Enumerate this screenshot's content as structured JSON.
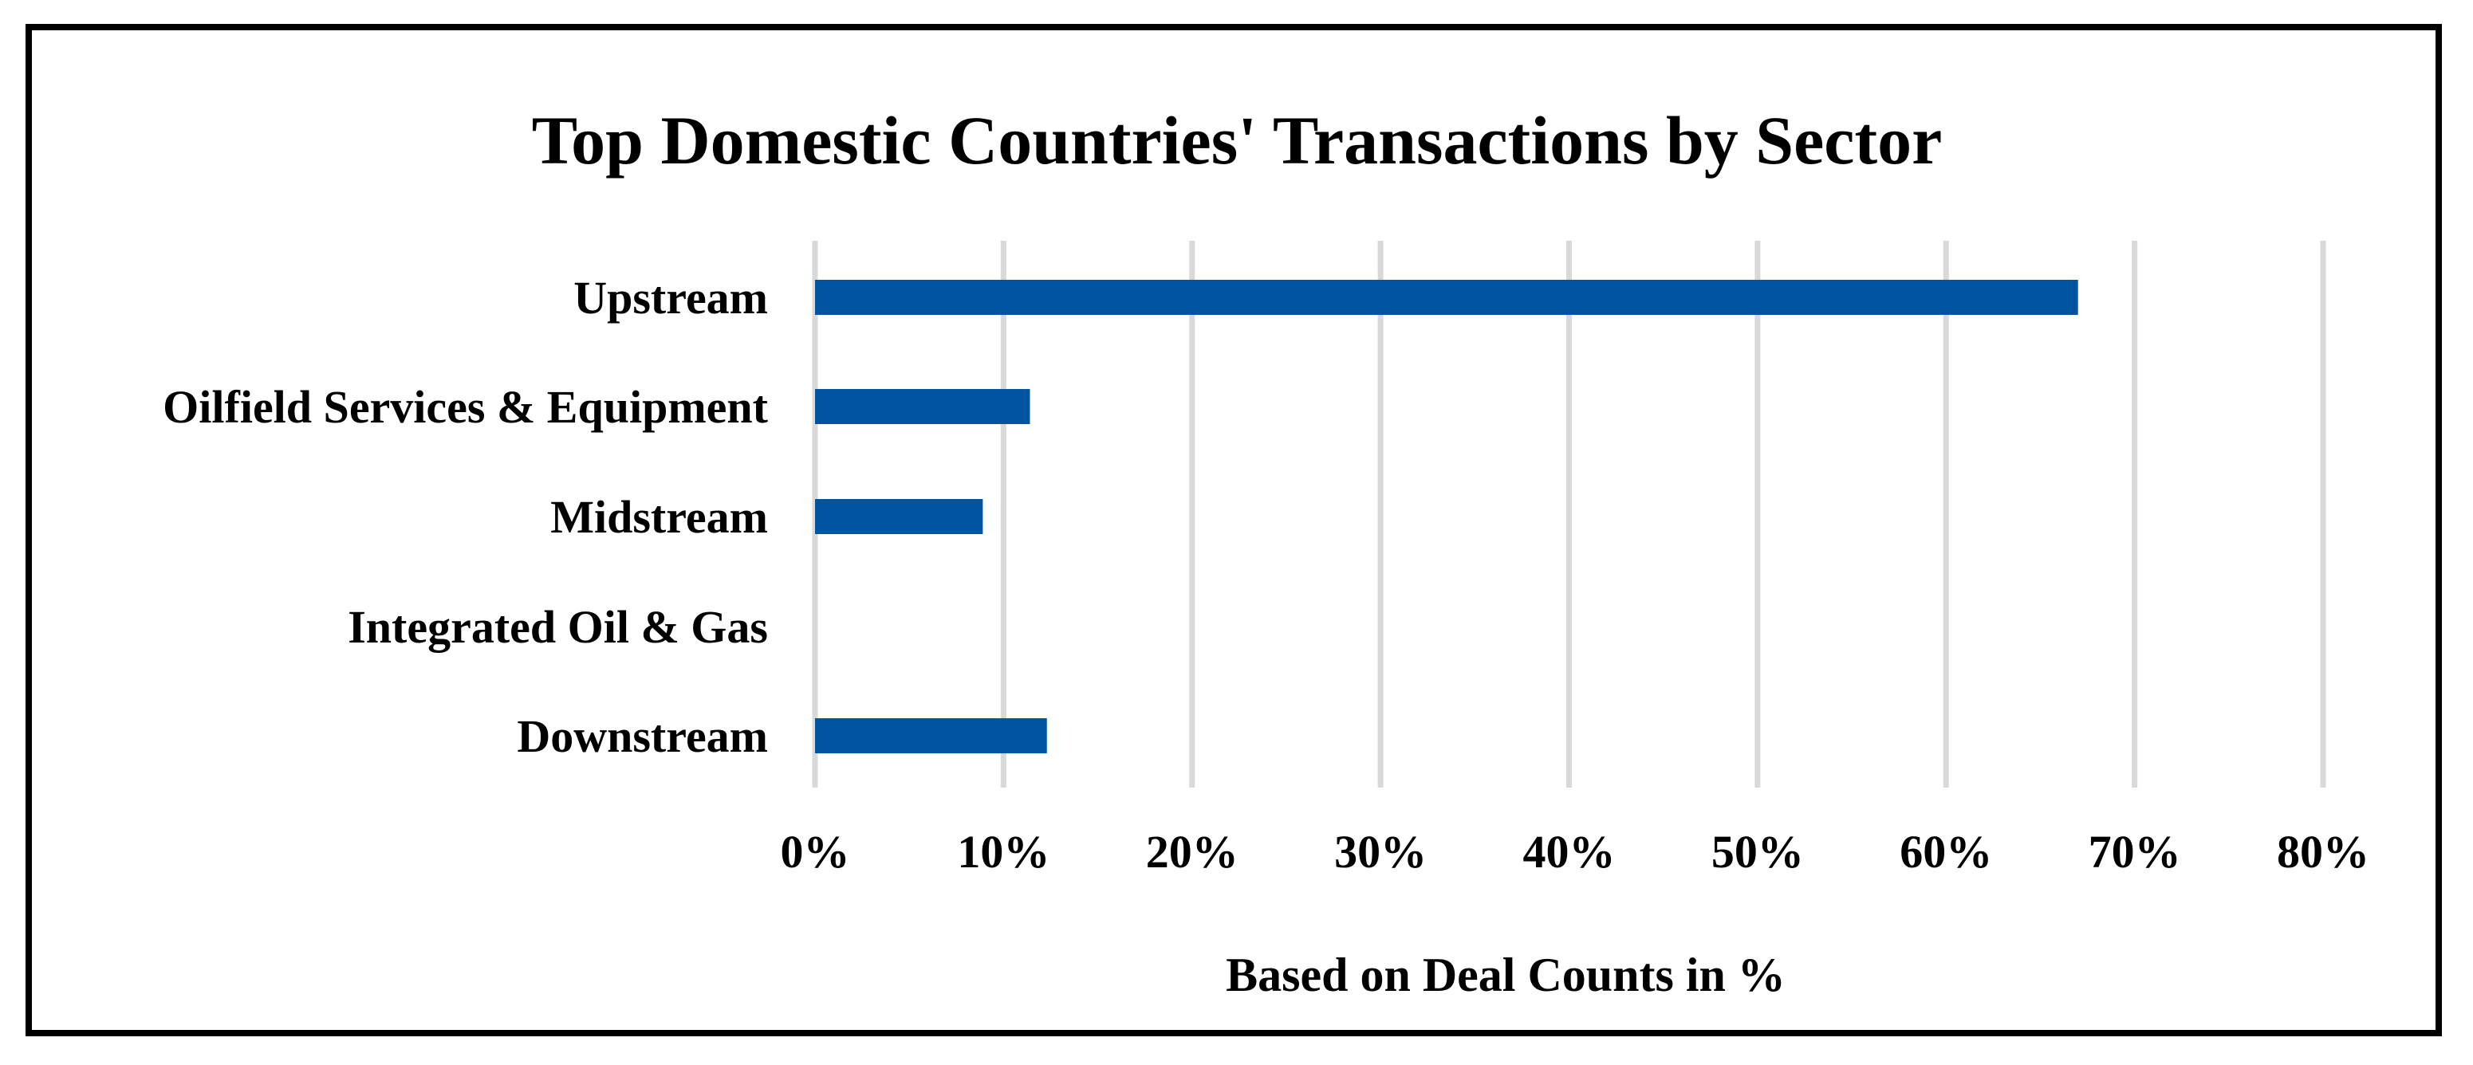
{
  "chart_data": {
    "type": "bar",
    "orientation": "horizontal",
    "title": "Top Domestic Countries' Transactions by Sector",
    "xlabel": "Based on Deal Counts in %",
    "ylabel": "",
    "categories": [
      "Upstream",
      "Oilfield Services & Equipment",
      "Midstream",
      "Integrated Oil & Gas",
      "Downstream"
    ],
    "values": [
      67,
      11.4,
      8.9,
      0,
      12.3
    ],
    "xlim": [
      0,
      80
    ],
    "x_ticks": [
      "0%",
      "10%",
      "20%",
      "30%",
      "40%",
      "50%",
      "60%",
      "70%",
      "80%"
    ],
    "grid": "vertical",
    "legend": "none",
    "bar_color": "#00549f"
  }
}
